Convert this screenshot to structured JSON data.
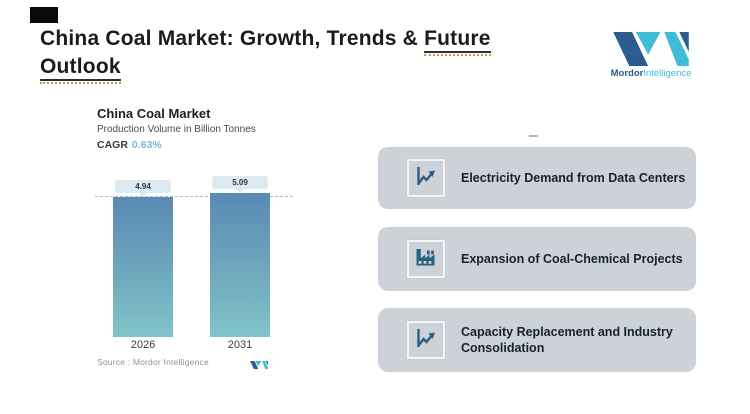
{
  "header": {
    "title_pre": "China Coal Market: Growth, Trends & ",
    "title_underlined_word": "Future",
    "title_line2": "Outlook"
  },
  "brand": {
    "wordmark_primary": "Mordor",
    "wordmark_secondary": "Intelligence",
    "color_dark": "#2d5c8e",
    "color_teal": "#41bcd8"
  },
  "chart_data": {
    "type": "bar",
    "title": "China Coal Market",
    "subtitle": "Production Volume in Billion Tonnes",
    "cagr_label": "CAGR",
    "cagr_value": "0.63%",
    "categories": [
      "2026",
      "2031"
    ],
    "values": [
      4.94,
      5.09
    ],
    "value_labels": [
      "4.94",
      "5.09"
    ],
    "ylim": [
      0,
      5.09
    ],
    "reference_line_value": 4.94,
    "grid": false,
    "legend": false,
    "bar_gradient_top": "#5a89b3",
    "bar_gradient_bottom": "#80c4c9",
    "source_label": "Source :  Mordor Intelligence"
  },
  "drivers": [
    {
      "icon": "line-chart-icon",
      "label": "Electricity Demand from Data Centers"
    },
    {
      "icon": "factory-icon",
      "label": "Expansion of Coal-Chemical Projects"
    },
    {
      "icon": "line-chart-icon",
      "label": "Capacity Replacement and Industry Consolidation"
    }
  ],
  "colors": {
    "card_bg": "#cdd2d8",
    "card_text": "#16222c",
    "cagr_value_color": "#74badb",
    "pill_bg": "#dce9f0",
    "title_underline_dotted": "#c49a52"
  }
}
